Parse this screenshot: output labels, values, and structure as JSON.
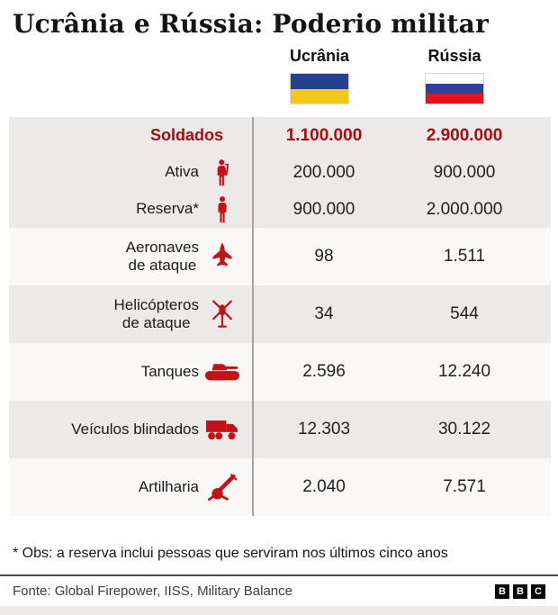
{
  "title": "Ucrânia e Rússia: Poderio militar",
  "columns": {
    "ukraine": {
      "label": "Ucrânia"
    },
    "russia": {
      "label": "Rússia"
    }
  },
  "flags": {
    "ukraine": [
      "#25418c",
      "#f4c81b"
    ],
    "russia": [
      "#ffffff",
      "#2d3f9b",
      "#e3141c"
    ]
  },
  "table": {
    "soldiers_group": [
      {
        "label": "Soldados",
        "icon": "",
        "ukraine": "1.100.000",
        "russia": "2.900.000",
        "highlight": true
      },
      {
        "label": "Ativa",
        "icon": "soldier-icon",
        "ukraine": "200.000",
        "russia": "900.000"
      },
      {
        "label": "Reserva*",
        "icon": "person-icon",
        "ukraine": "900.000",
        "russia": "2.000.000"
      }
    ],
    "rows": [
      {
        "label": "Aeronaves\nde ataque",
        "icon": "fighter-jet-icon",
        "ukraine": "98",
        "russia": "1.511"
      },
      {
        "label": "Helicópteros\nde ataque",
        "icon": "helicopter-icon",
        "ukraine": "34",
        "russia": "544"
      },
      {
        "label": "Tanques",
        "icon": "tank-icon",
        "ukraine": "2.596",
        "russia": "12.240"
      },
      {
        "label": "Veículos blindados",
        "icon": "armored-truck-icon",
        "ukraine": "12.303",
        "russia": "30.122"
      },
      {
        "label": "Artilharia",
        "icon": "artillery-icon",
        "ukraine": "2.040",
        "russia": "7.571"
      }
    ]
  },
  "footnote": "* Obs: a reserva inclui pessoas que serviram nos últimos cinco anos",
  "source": "Fonte: Global Firepower, IISS, Military Balance",
  "bbc_logo_letters": [
    "B",
    "B",
    "C"
  ],
  "colors": {
    "highlight_red": "#a50d12",
    "icon_red": "#c21418",
    "row_gray": "#eceae8",
    "row_light": "#f9f8f6",
    "divider_gray": "#a6a6a4"
  },
  "chart_data": {
    "type": "table",
    "title": "Ucrânia e Rússia: Poderio militar",
    "columns": [
      "Ucrânia",
      "Rússia"
    ],
    "rows": [
      {
        "label": "Soldados",
        "ukraine": 1100000,
        "russia": 2900000
      },
      {
        "label": "Ativa",
        "ukraine": 200000,
        "russia": 900000
      },
      {
        "label": "Reserva*",
        "ukraine": 900000,
        "russia": 2000000
      },
      {
        "label": "Aeronaves de ataque",
        "ukraine": 98,
        "russia": 1511
      },
      {
        "label": "Helicópteros de ataque",
        "ukraine": 34,
        "russia": 544
      },
      {
        "label": "Tanques",
        "ukraine": 2596,
        "russia": 12240
      },
      {
        "label": "Veículos blindados",
        "ukraine": 12303,
        "russia": 30122
      },
      {
        "label": "Artilharia",
        "ukraine": 2040,
        "russia": 7571
      }
    ],
    "footnote": "* Obs: a reserva inclui pessoas que serviram nos últimos cinco anos",
    "source": "Fonte: Global Firepower, IISS, Military Balance"
  }
}
